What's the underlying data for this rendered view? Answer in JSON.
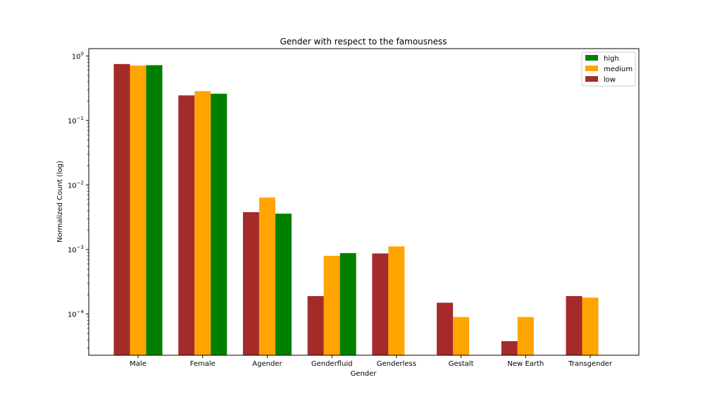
{
  "chart_data": {
    "type": "bar",
    "title": "Gender with respect to the famousness",
    "xlabel": "Gender",
    "ylabel": "Normalized Count (log)",
    "yscale": "log",
    "ylim": [
      2.3e-05,
      1.3
    ],
    "yticks": [
      {
        "value": 0.0001,
        "base": "10",
        "exp": "−4"
      },
      {
        "value": 0.001,
        "base": "10",
        "exp": "−3"
      },
      {
        "value": 0.01,
        "base": "10",
        "exp": "−2"
      },
      {
        "value": 0.1,
        "base": "10",
        "exp": "−1"
      },
      {
        "value": 1,
        "base": "10",
        "exp": "0"
      }
    ],
    "categories": [
      "Male",
      "Female",
      "Agender",
      "Genderfluid",
      "Genderless",
      "Gestalt",
      "New Earth",
      "Transgender"
    ],
    "series": [
      {
        "name": "low",
        "color": "#a52a2a",
        "values": [
          0.75,
          0.245,
          0.0038,
          0.00019,
          0.00087,
          0.00015,
          3.8e-05,
          0.00019
        ]
      },
      {
        "name": "medium",
        "color": "#ffa500",
        "values": [
          0.71,
          0.285,
          0.0064,
          0.0008,
          0.00112,
          9e-05,
          9e-05,
          0.00018
        ]
      },
      {
        "name": "high",
        "color": "#008000",
        "values": [
          0.72,
          0.26,
          0.0036,
          0.00088,
          null,
          null,
          null,
          null
        ]
      }
    ],
    "legend": {
      "placement": "top-right",
      "order": [
        "high",
        "medium",
        "low"
      ]
    },
    "grid": false
  }
}
